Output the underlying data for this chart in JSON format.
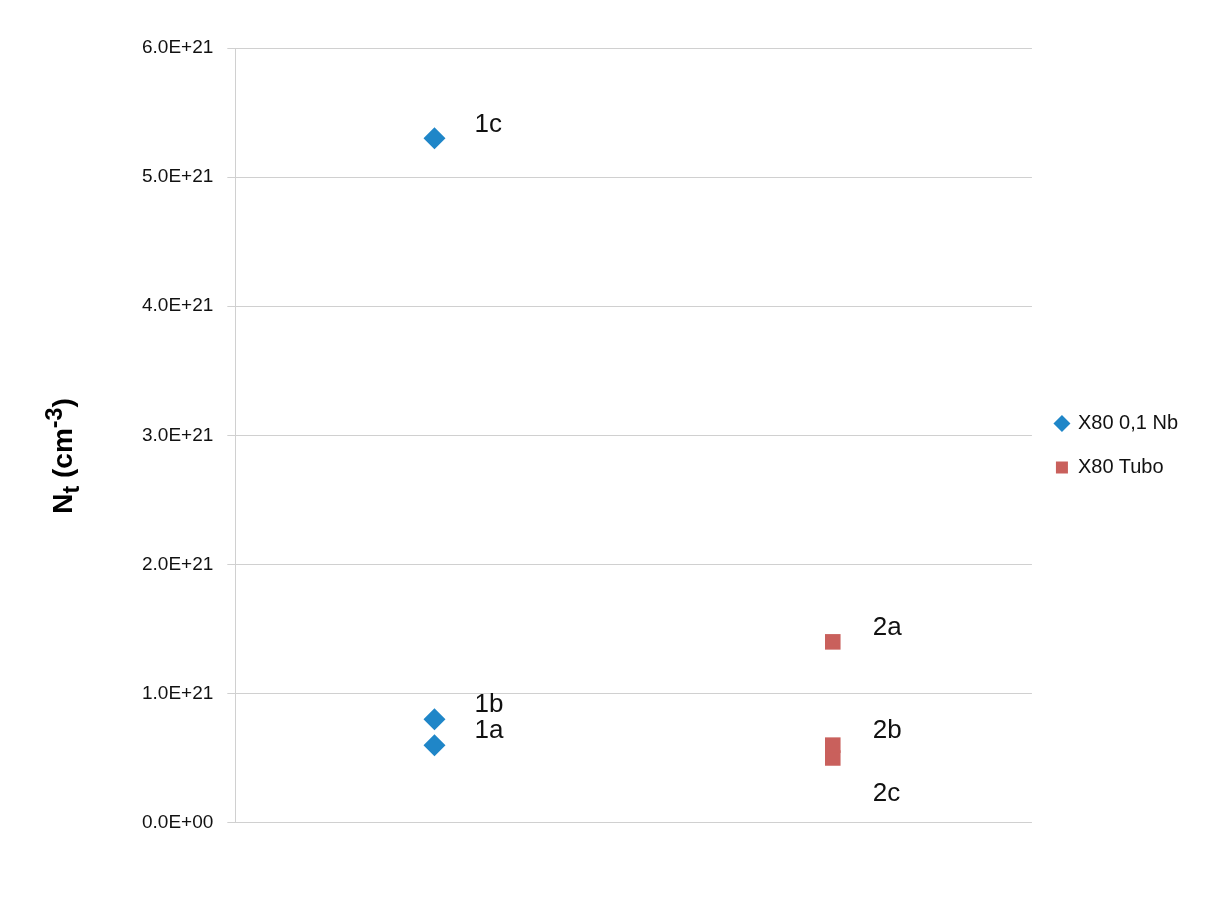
{
  "chart_data": {
    "type": "scatter",
    "ylabel": "N$_{t}$ (cm$^{-3}$)",
    "categories": [
      null,
      null
    ],
    "ylim": [
      0,
      6e+21
    ],
    "yticks": [
      {
        "value": 0,
        "label": "0.0E+00"
      },
      {
        "value": 1e+21,
        "label": "1.0E+21"
      },
      {
        "value": 2e+21,
        "label": "2.0E+21"
      },
      {
        "value": 3e+21,
        "label": "3.0E+21"
      },
      {
        "value": 4e+21,
        "label": "4.0E+21"
      },
      {
        "value": 5e+21,
        "label": "5.0E+21"
      },
      {
        "value": 6e+21,
        "label": "6.0E+21"
      }
    ],
    "grid": "y",
    "legend": "right",
    "series": [
      {
        "name": "X80 0,1 Nb",
        "color": "#1f86c8",
        "marker": "diamond",
        "values": [
          6e+20,
          null
        ]
      },
      {
        "color": "#1f86c8",
        "marker": "diamond",
        "values": [
          8e+20,
          null
        ]
      },
      {
        "color": "#1f86c8",
        "marker": "diamond",
        "values": [
          5.3e+21,
          null
        ]
      },
      {
        "name": "X80 Tubo",
        "color": "#c9605c",
        "marker": "square",
        "values": [
          null,
          1.4e+21
        ]
      },
      {
        "color": "#c9605c",
        "marker": "square",
        "values": [
          null,
          6e+20
        ]
      },
      {
        "color": "#c9605c",
        "marker": "square",
        "values": [
          null,
          5e+20
        ]
      }
    ],
    "annotations": [
      "1a",
      "1b",
      "1c",
      "2a",
      "2b",
      "2c"
    ]
  }
}
